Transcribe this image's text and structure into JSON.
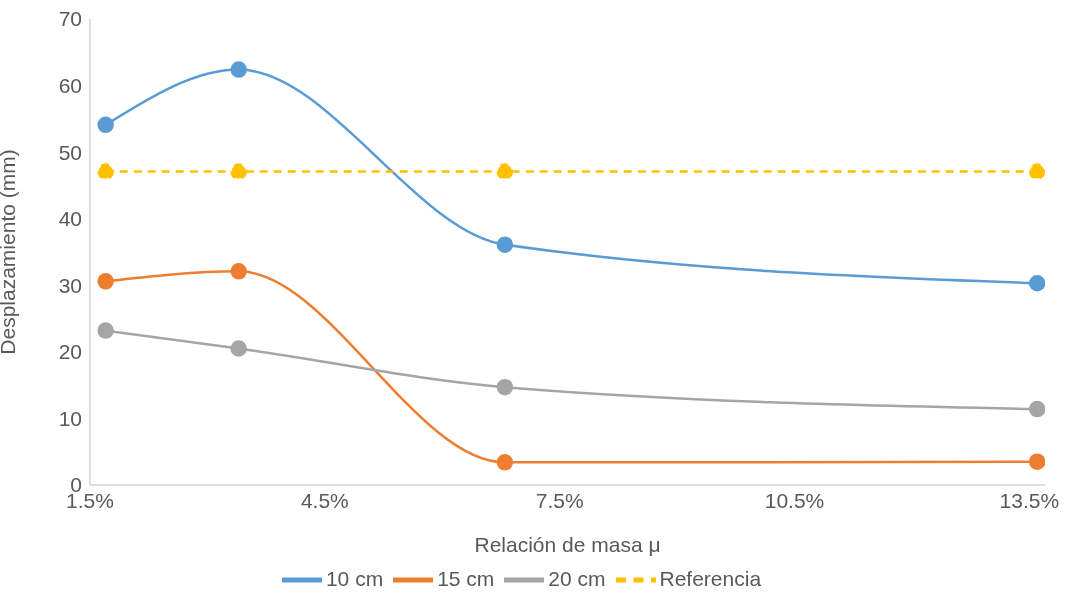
{
  "chart_data": {
    "type": "line",
    "xlabel": "Relación de masa μ",
    "ylabel": "Desplazamiento (mm)",
    "x": [
      1.7,
      3.4,
      6.8,
      13.6
    ],
    "xlim": [
      1.5,
      13.7
    ],
    "xticks": [
      {
        "value": 1.5,
        "label": "1.5%"
      },
      {
        "value": 4.5,
        "label": "4.5%"
      },
      {
        "value": 7.5,
        "label": "7.5%"
      },
      {
        "value": 10.5,
        "label": "10.5%"
      },
      {
        "value": 13.5,
        "label": "13.5%"
      }
    ],
    "ylim": [
      0,
      70
    ],
    "yticks": [
      0,
      10,
      20,
      30,
      40,
      50,
      60,
      70
    ],
    "series": [
      {
        "name": "10 cm",
        "color": "#5b9bd5",
        "values": [
          54.1,
          62.4,
          36.1,
          30.3
        ]
      },
      {
        "name": "15 cm",
        "color": "#ed7d31",
        "values": [
          30.6,
          32.1,
          3.4,
          3.5
        ]
      },
      {
        "name": "20 cm",
        "color": "#a5a5a5",
        "values": [
          23.2,
          20.5,
          14.7,
          11.4
        ]
      },
      {
        "name": "Referencia",
        "color": "#ffc000",
        "line_style": "dashed",
        "values": [
          47.1,
          47.1,
          47.1,
          47.1
        ]
      }
    ],
    "marker": "circle",
    "grid": false,
    "legend": "bottom"
  }
}
